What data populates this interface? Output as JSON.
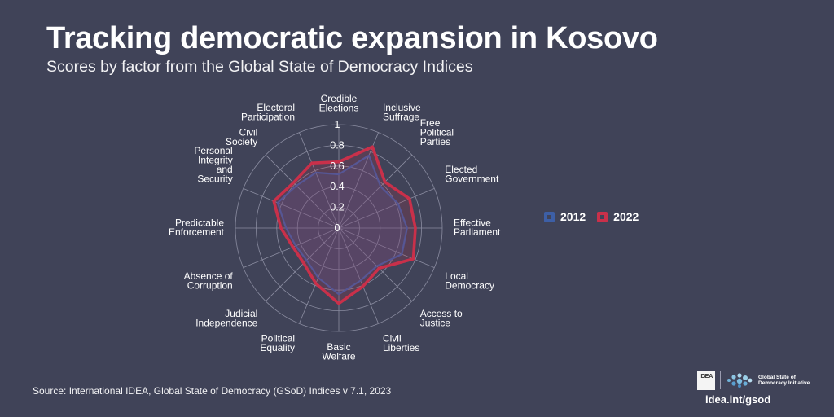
{
  "header": {
    "title": "Tracking democratic expansion in Kosovo",
    "subtitle": "Scores by factor from the Global State of Democracy Indices"
  },
  "legend": {
    "items": [
      {
        "label": "2012",
        "color": "#3d5fa6"
      },
      {
        "label": "2022",
        "color": "#c9304a"
      }
    ]
  },
  "footer": {
    "source": "Source: International IDEA, Global State of Democracy (GSoD) Indices v 7.1, 2023",
    "logo_idea_text": "IDEA",
    "logo_initiative_text": "Global State of Democracy Initiative",
    "logo_url": "idea.int/gsod"
  },
  "chart_data": {
    "type": "radar",
    "title": "",
    "range": [
      0,
      1
    ],
    "ticks": [
      0,
      0.2,
      0.4,
      0.6,
      0.8,
      1
    ],
    "tick_labels": [
      "0",
      "0.2",
      "0.4",
      "0.6",
      "0.8",
      "1"
    ],
    "grid": true,
    "legend_position": "right",
    "axes": [
      [
        "Credible",
        "Elections"
      ],
      [
        "Inclusive",
        "Suffrage"
      ],
      [
        "Free",
        "Political",
        "Parties"
      ],
      [
        "Elected",
        "Government"
      ],
      [
        "Effective",
        "Parliament"
      ],
      [
        "Local",
        "Democracy"
      ],
      [
        "Access to",
        "Justice"
      ],
      [
        "Civil",
        "Liberties"
      ],
      [
        "Basic",
        "Welfare"
      ],
      [
        "Political",
        "Equality"
      ],
      [
        "Judicial",
        "Independence"
      ],
      [
        "Absence of",
        "Corruption"
      ],
      [
        "Predictable",
        "Enforcement"
      ],
      [
        "Personal",
        "Integrity",
        "and",
        "Security"
      ],
      [
        "Civil",
        "Society"
      ],
      [
        "Electoral",
        "Participation"
      ]
    ],
    "series": [
      {
        "name": "2012",
        "color": "#3d5fa6",
        "values": [
          0.52,
          0.76,
          0.57,
          0.62,
          0.66,
          0.66,
          0.52,
          0.55,
          0.64,
          0.52,
          0.44,
          0.45,
          0.51,
          0.64,
          0.58,
          0.58
        ]
      },
      {
        "name": "2022",
        "color": "#c9304a",
        "values": [
          0.64,
          0.85,
          0.63,
          0.74,
          0.74,
          0.78,
          0.55,
          0.61,
          0.73,
          0.58,
          0.48,
          0.48,
          0.56,
          0.68,
          0.62,
          0.68
        ]
      }
    ]
  }
}
